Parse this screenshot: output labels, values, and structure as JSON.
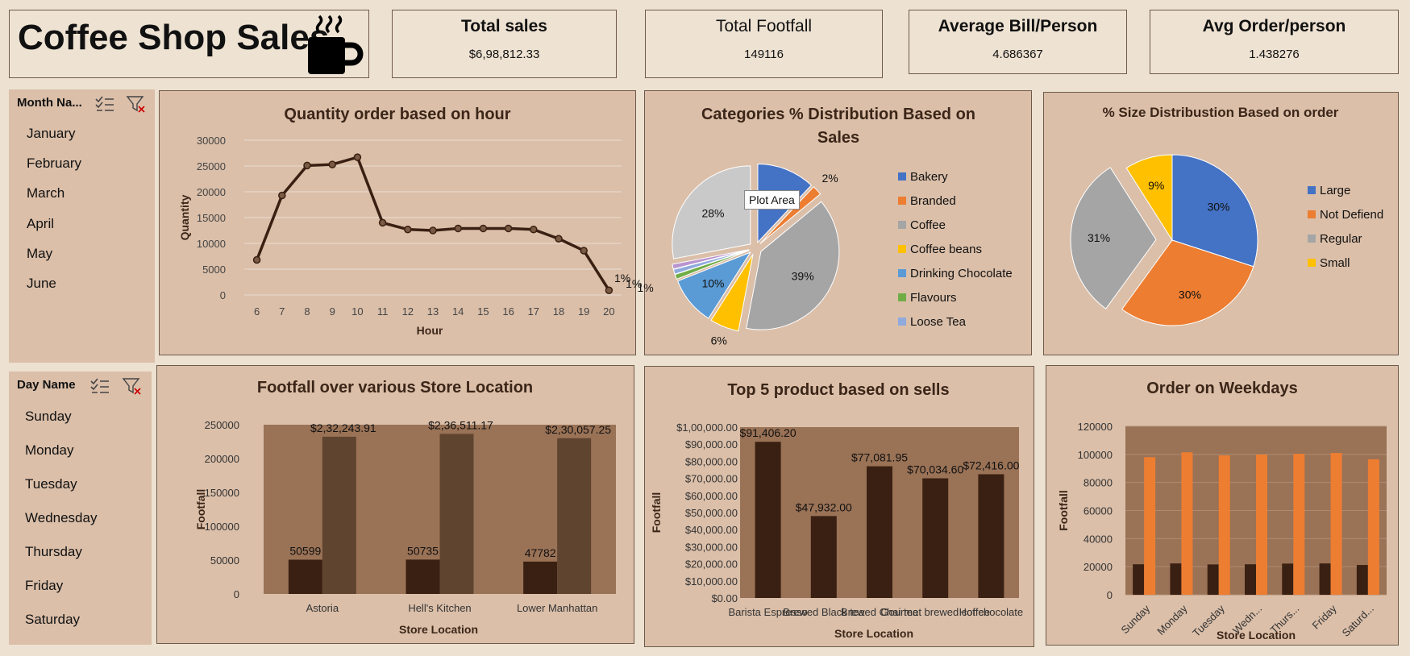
{
  "title": "Coffee Shop Sales",
  "icons": {
    "title_icon": "coffee-mug-icon",
    "multi_select": "multi-select-icon",
    "clear_filter": "clear-filter-icon"
  },
  "kpis": [
    {
      "label": "Total sales",
      "value": "$6,98,812.33"
    },
    {
      "label": "Total Footfall",
      "value": "149116"
    },
    {
      "label": "Average Bill/Person",
      "value": "4.686367"
    },
    {
      "label": "Avg Order/person",
      "value": "1.438276"
    }
  ],
  "slicers": {
    "month": {
      "header": "Month Na...",
      "items": [
        "January",
        "February",
        "March",
        "April",
        "May",
        "June"
      ]
    },
    "day": {
      "header": "Day Name",
      "items": [
        "Sunday",
        "Monday",
        "Tuesday",
        "Wednesday",
        "Thursday",
        "Friday",
        "Saturday"
      ]
    }
  },
  "tooltip": "Plot Area",
  "colors": {
    "dark_brown": "#3a2012",
    "mid_brown": "#5f4530",
    "plot_bg": "#9a7256",
    "orange": "#ed7d31",
    "blue": "#4472c4",
    "grey": "#a5a5a5",
    "yellow": "#ffc000",
    "light_blue": "#5b9bd5",
    "green": "#70ad47"
  },
  "chart_data": [
    {
      "id": "hourly",
      "type": "line",
      "title": "Quantity order based on hour",
      "xlabel": "Hour",
      "ylabel": "Quantity",
      "x": [
        "6",
        "7",
        "8",
        "9",
        "10",
        "11",
        "12",
        "13",
        "14",
        "15",
        "16",
        "17",
        "18",
        "19",
        "20"
      ],
      "values": [
        6800,
        19300,
        25100,
        25300,
        26700,
        14000,
        12700,
        12500,
        12900,
        12900,
        12900,
        12700,
        10900,
        8600,
        900
      ],
      "ylim": [
        0,
        30000
      ],
      "yticks": [
        "0",
        "5000",
        "10000",
        "15000",
        "20000",
        "25000",
        "30000"
      ],
      "grid": true
    },
    {
      "id": "categories",
      "type": "pie",
      "title": "Categories % Distribution Based on Sales",
      "legend_position": "right",
      "legend": [
        "Bakery",
        "Branded",
        "Coffee",
        "Coffee beans",
        "Drinking Chocolate",
        "Flavours",
        "Loose Tea"
      ],
      "slices": [
        {
          "name": "Bakery",
          "value": 12,
          "label": "",
          "color": "#4472c4"
        },
        {
          "name": "Branded",
          "value": 2,
          "label": "2%",
          "color": "#ed7d31"
        },
        {
          "name": "Coffee",
          "value": 39,
          "label": "39%",
          "color": "#a5a5a5"
        },
        {
          "name": "Coffee beans",
          "value": 6,
          "label": "6%",
          "color": "#ffc000"
        },
        {
          "name": "Drinking Chocolate",
          "value": 10,
          "label": "10%",
          "color": "#5b9bd5"
        },
        {
          "name": "Flavours",
          "value": 1,
          "label": "1%",
          "color": "#70ad47"
        },
        {
          "name": "Loose Tea",
          "value": 1,
          "label": "1%",
          "color": "#8faadc"
        },
        {
          "name": "",
          "value": 1,
          "label": "1%",
          "color": "#b995d0"
        },
        {
          "name": "",
          "value": 28,
          "label": "28%",
          "color": "#c9c9c9"
        }
      ]
    },
    {
      "id": "sizes",
      "type": "pie",
      "title": "% Size Distribustion Based on order",
      "legend_position": "right",
      "legend": [
        "Large",
        "Not Defiend",
        "Regular",
        "Small"
      ],
      "slices": [
        {
          "name": "Large",
          "value": 30,
          "label": "30%",
          "color": "#4472c4"
        },
        {
          "name": "Not Defiend",
          "value": 30,
          "label": "30%",
          "color": "#ed7d31"
        },
        {
          "name": "Regular",
          "value": 31,
          "label": "31%",
          "color": "#a5a5a5"
        },
        {
          "name": "Small",
          "value": 9,
          "label": "9%",
          "color": "#ffc000"
        }
      ]
    },
    {
      "id": "footfall",
      "type": "bar",
      "title": "Footfall over various Store Location",
      "xlabel": "Store Location",
      "ylabel": "Footfall",
      "categories": [
        "Astoria",
        "Hell's Kitchen",
        "Lower Manhattan"
      ],
      "series": [
        {
          "values": [
            50599,
            50735,
            47782
          ],
          "labels": [
            "50599",
            "50735",
            "47782"
          ],
          "color": "#3a2012"
        },
        {
          "values": [
            232243.91,
            236511.17,
            230057.25
          ],
          "labels": [
            "$2,32,243.91",
            "$2,36,511.17",
            "$2,30,057.25"
          ],
          "color": "#5f4530"
        }
      ],
      "ylim": [
        0,
        250000
      ],
      "yticks": [
        "0",
        "50000",
        "100000",
        "150000",
        "200000",
        "250000"
      ]
    },
    {
      "id": "top5",
      "type": "bar",
      "title": "Top 5 product based on sells",
      "xlabel": "Store Location",
      "ylabel": "Footfall",
      "categories": [
        "Barista Espresso",
        "Brewed Black tea",
        "Brewed Chai tea",
        "Gourmet brewed coffee",
        "Hot chocolate"
      ],
      "series": [
        {
          "values": [
            91406.2,
            47932.0,
            77081.95,
            70034.6,
            72416.0
          ],
          "labels": [
            "$91,406.20",
            "$47,932.00",
            "$77,081.95",
            "$70,034.60",
            "$72,416.00"
          ],
          "color": "#3a2012"
        }
      ],
      "ylim": [
        0,
        100000
      ],
      "yticks": [
        "$0.00",
        "$10,000.00",
        "$20,000.00",
        "$30,000.00",
        "$40,000.00",
        "$50,000.00",
        "$60,000.00",
        "$70,000.00",
        "$80,000.00",
        "$90,000.00",
        "$1,00,000.00"
      ]
    },
    {
      "id": "weekdays",
      "type": "bar",
      "title": "Order on Weekdays",
      "xlabel": "Store Location",
      "ylabel": "Footfall",
      "categories": [
        "Sunday",
        "Monday",
        "Tuesday",
        "Wedn...",
        "Thurs...",
        "Friday",
        "Saturd..."
      ],
      "series": [
        {
          "values": [
            21700,
            22300,
            21600,
            21700,
            22200,
            22300,
            21200
          ],
          "color": "#3a2012"
        },
        {
          "values": [
            98000,
            101500,
            99300,
            99900,
            100400,
            101000,
            96500
          ],
          "color": "#ed7d31"
        }
      ],
      "ylim": [
        0,
        120000
      ],
      "yticks": [
        "0",
        "20000",
        "40000",
        "60000",
        "80000",
        "100000",
        "120000"
      ],
      "grid": true
    }
  ]
}
